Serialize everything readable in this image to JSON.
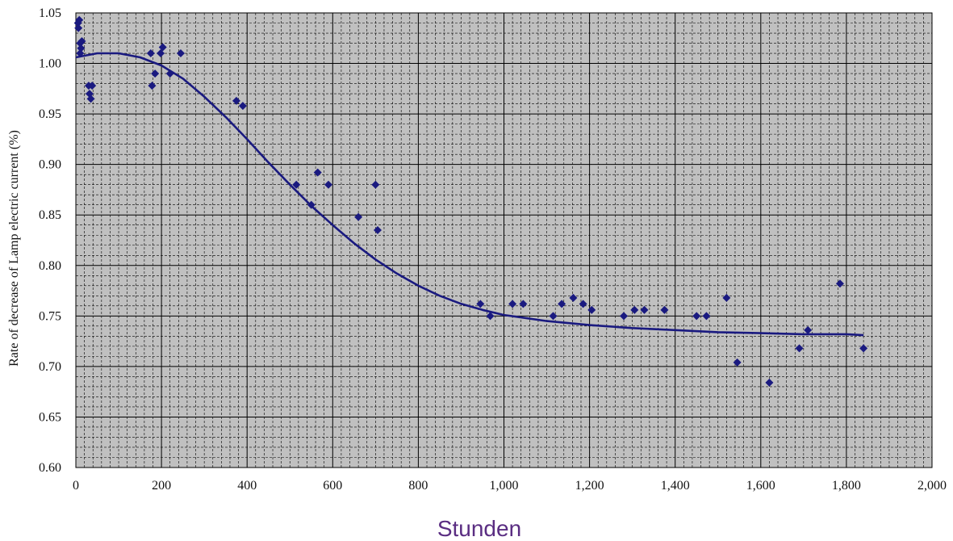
{
  "chart_data": {
    "type": "scatter",
    "title": "",
    "xlabel": "Stunden",
    "ylabel": "Rate of decrease of Lamp electric current (%)",
    "xlim": [
      0,
      2000
    ],
    "ylim": [
      0.6,
      1.05
    ],
    "x_ticks": [
      0,
      200,
      400,
      600,
      800,
      1000,
      1200,
      1400,
      1600,
      1800,
      2000
    ],
    "x_tick_labels": [
      "0",
      "200",
      "400",
      "600",
      "800",
      "1,000",
      "1,200",
      "1,400",
      "1,600",
      "1,800",
      "2,000"
    ],
    "y_ticks": [
      0.6,
      0.65,
      0.7,
      0.75,
      0.8,
      0.85,
      0.9,
      0.95,
      1.0,
      1.05
    ],
    "y_tick_labels": [
      "0.60",
      "0.65",
      "0.70",
      "0.75",
      "0.80",
      "0.85",
      "0.90",
      "0.95",
      "1.00",
      "1.05"
    ],
    "grid": true,
    "minor_grid": true,
    "plot_background": "#c0c0c0",
    "series": [
      {
        "kind": "points",
        "marker": "diamond",
        "color": "#1a1a80",
        "points": [
          [
            5,
            1.04
          ],
          [
            6,
            1.035
          ],
          [
            8,
            1.043
          ],
          [
            10,
            1.02
          ],
          [
            10,
            1.01
          ],
          [
            12,
            1.015
          ],
          [
            14,
            1.022
          ],
          [
            30,
            0.978
          ],
          [
            32,
            0.97
          ],
          [
            35,
            0.965
          ],
          [
            38,
            0.978
          ],
          [
            175,
            1.01
          ],
          [
            178,
            0.978
          ],
          [
            185,
            0.99
          ],
          [
            198,
            1.01
          ],
          [
            203,
            1.016
          ],
          [
            220,
            0.99
          ],
          [
            245,
            1.01
          ],
          [
            375,
            0.963
          ],
          [
            390,
            0.958
          ],
          [
            515,
            0.88
          ],
          [
            550,
            0.86
          ],
          [
            565,
            0.892
          ],
          [
            590,
            0.88
          ],
          [
            660,
            0.848
          ],
          [
            700,
            0.88
          ],
          [
            705,
            0.835
          ],
          [
            945,
            0.762
          ],
          [
            968,
            0.75
          ],
          [
            1020,
            0.762
          ],
          [
            1045,
            0.762
          ],
          [
            1115,
            0.75
          ],
          [
            1135,
            0.762
          ],
          [
            1162,
            0.768
          ],
          [
            1185,
            0.762
          ],
          [
            1205,
            0.756
          ],
          [
            1280,
            0.75
          ],
          [
            1305,
            0.756
          ],
          [
            1328,
            0.756
          ],
          [
            1375,
            0.756
          ],
          [
            1450,
            0.75
          ],
          [
            1473,
            0.75
          ],
          [
            1520,
            0.768
          ],
          [
            1545,
            0.704
          ],
          [
            1620,
            0.684
          ],
          [
            1690,
            0.718
          ],
          [
            1710,
            0.736
          ],
          [
            1785,
            0.782
          ],
          [
            1840,
            0.718
          ]
        ]
      },
      {
        "kind": "curve",
        "color": "#1a1a80",
        "points": [
          [
            0,
            1.006
          ],
          [
            50,
            1.01
          ],
          [
            100,
            1.01
          ],
          [
            150,
            1.006
          ],
          [
            200,
            0.998
          ],
          [
            250,
            0.985
          ],
          [
            300,
            0.967
          ],
          [
            350,
            0.947
          ],
          [
            400,
            0.925
          ],
          [
            450,
            0.902
          ],
          [
            500,
            0.88
          ],
          [
            550,
            0.859
          ],
          [
            600,
            0.84
          ],
          [
            650,
            0.822
          ],
          [
            700,
            0.806
          ],
          [
            750,
            0.792
          ],
          [
            800,
            0.78
          ],
          [
            850,
            0.77
          ],
          [
            900,
            0.762
          ],
          [
            950,
            0.756
          ],
          [
            1000,
            0.751
          ],
          [
            1100,
            0.745
          ],
          [
            1200,
            0.741
          ],
          [
            1300,
            0.738
          ],
          [
            1400,
            0.736
          ],
          [
            1500,
            0.734
          ],
          [
            1600,
            0.733
          ],
          [
            1700,
            0.732
          ],
          [
            1800,
            0.732
          ],
          [
            1840,
            0.731
          ]
        ]
      }
    ]
  }
}
